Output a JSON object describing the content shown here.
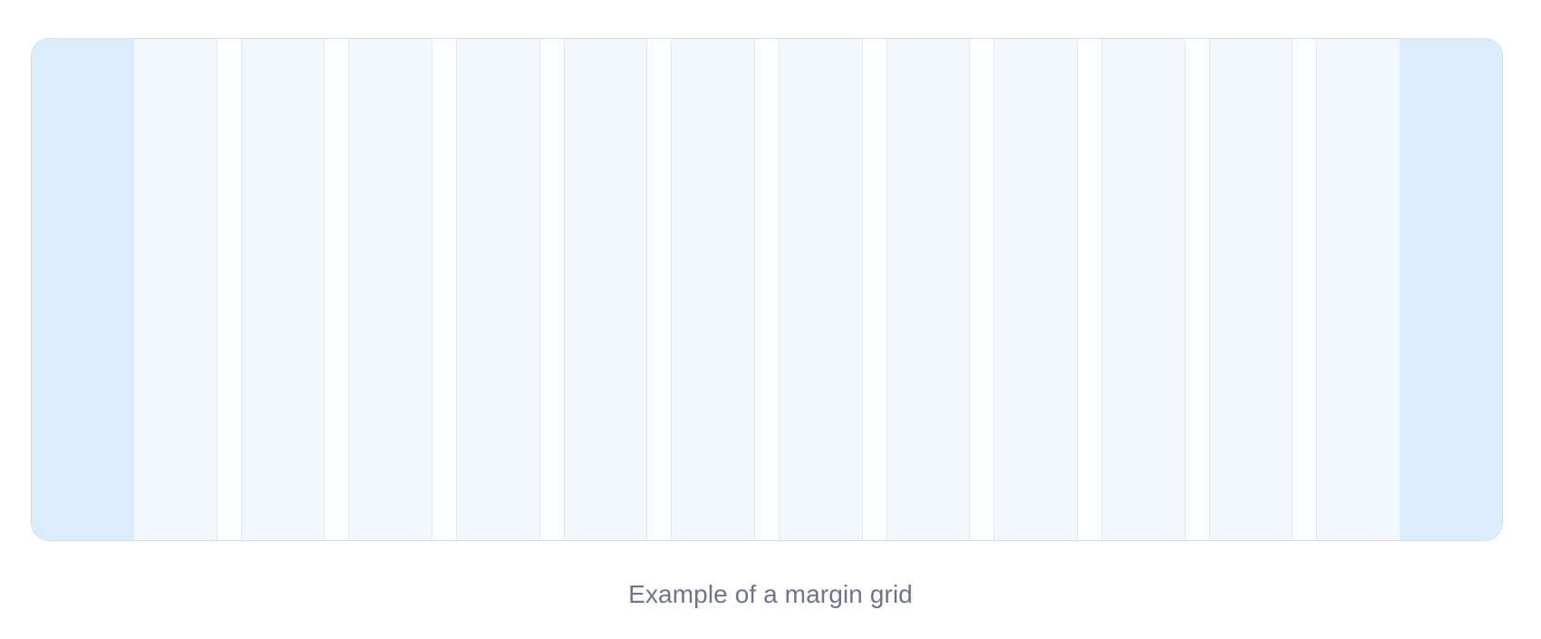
{
  "diagram": {
    "type": "margin-grid",
    "column_count": 12,
    "colors": {
      "margin": "#d9edfc",
      "column": "#f3f8fc",
      "gutter": "#fdfeff",
      "frame_border": "#d6dde6"
    }
  },
  "caption": "Example of a margin grid"
}
